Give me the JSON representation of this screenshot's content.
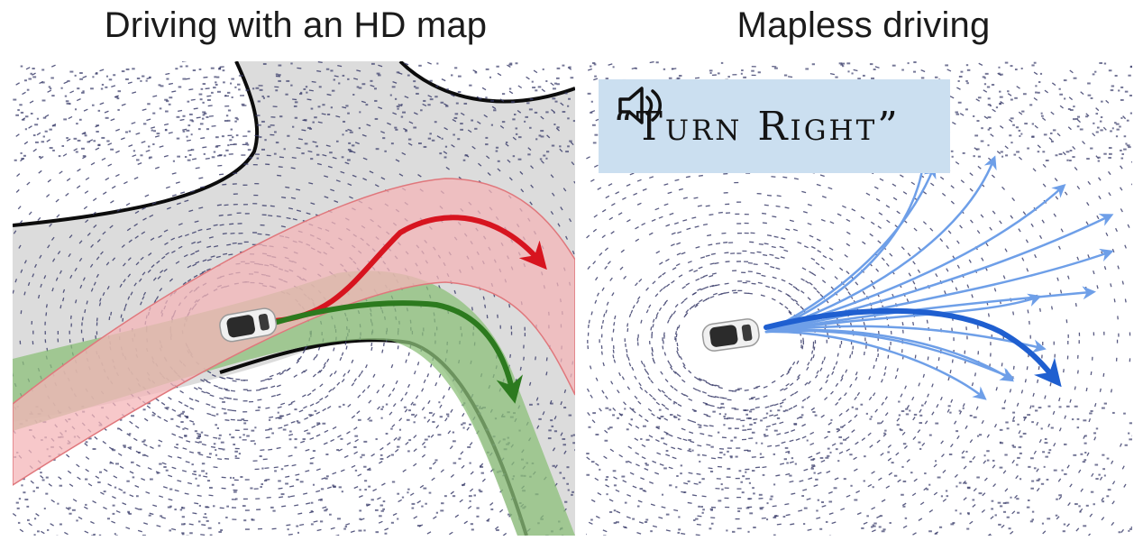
{
  "figure": {
    "left_panel": {
      "title": "Driving with an HD map"
    },
    "right_panel": {
      "title": "Mapless driving",
      "command": {
        "icon": "speaker-icon",
        "text": "“Turn Right”"
      }
    }
  },
  "colors": {
    "map_region": "#dcdcdc",
    "lidar_points": "#3b3d6b",
    "red_route": "#d7141f",
    "red_corridor": "#f4b6b8",
    "green_route": "#2c7a1e",
    "green_corridor": "#8cc07a",
    "blue_route": "#1f5fd0",
    "blue_fan": "#6e9fe8",
    "command_box": "#cbdff0"
  }
}
